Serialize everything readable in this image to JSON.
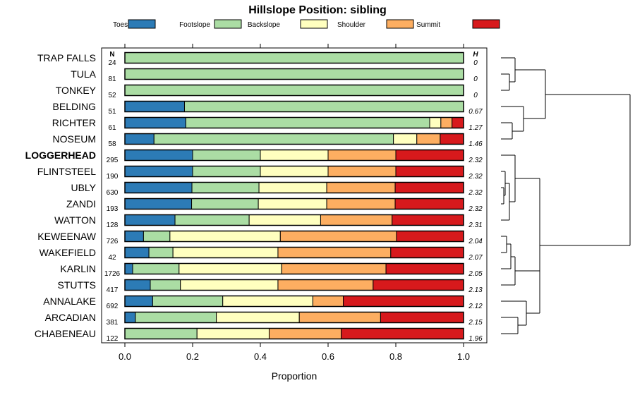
{
  "chart_data": {
    "type": "stacked-bar-horizontal",
    "title": "Hillslope Position: sibling",
    "xlabel": "Proportion",
    "xlim": [
      0,
      1
    ],
    "xticks": [
      "0.0",
      "0.2",
      "0.4",
      "0.6",
      "0.8",
      "1.0"
    ],
    "n_header": "N",
    "h_header": "H",
    "categories_legend": [
      {
        "name": "Toeslope",
        "color": "#2c7bb6"
      },
      {
        "name": "Footslope",
        "color": "#abdda4"
      },
      {
        "name": "Backslope",
        "color": "#ffffbf"
      },
      {
        "name": "Shoulder",
        "color": "#fdae61"
      },
      {
        "name": "Summit",
        "color": "#d7191c"
      }
    ],
    "rows": [
      {
        "label": "TRAP FALLS",
        "n": "24",
        "h": "0",
        "bold": false,
        "values": [
          0,
          1,
          0,
          0,
          0
        ]
      },
      {
        "label": "TULA",
        "n": "81",
        "h": "0",
        "bold": false,
        "values": [
          0,
          1,
          0,
          0,
          0
        ]
      },
      {
        "label": "TONKEY",
        "n": "52",
        "h": "0",
        "bold": false,
        "values": [
          0,
          1,
          0,
          0,
          0
        ]
      },
      {
        "label": "BELDING",
        "n": "51",
        "h": "0.67",
        "bold": false,
        "values": [
          0.176,
          0.824,
          0,
          0,
          0
        ]
      },
      {
        "label": "RICHTER",
        "n": "61",
        "h": "1.27",
        "bold": false,
        "values": [
          0.18,
          0.72,
          0.033,
          0.033,
          0.034
        ]
      },
      {
        "label": "NOSEUM",
        "n": "58",
        "h": "1.46",
        "bold": false,
        "values": [
          0.086,
          0.707,
          0.069,
          0.069,
          0.069
        ]
      },
      {
        "label": "LOGGERHEAD",
        "n": "295",
        "h": "2.32",
        "bold": true,
        "values": [
          0.2,
          0.2,
          0.2,
          0.2,
          0.2
        ]
      },
      {
        "label": "FLINTSTEEL",
        "n": "190",
        "h": "2.32",
        "bold": false,
        "values": [
          0.2,
          0.2,
          0.2,
          0.2,
          0.2
        ]
      },
      {
        "label": "UBLY",
        "n": "630",
        "h": "2.32",
        "bold": false,
        "values": [
          0.198,
          0.198,
          0.2,
          0.202,
          0.202
        ]
      },
      {
        "label": "ZANDI",
        "n": "193",
        "h": "2.32",
        "bold": false,
        "values": [
          0.197,
          0.197,
          0.202,
          0.202,
          0.202
        ]
      },
      {
        "label": "WATTON",
        "n": "128",
        "h": "2.31",
        "bold": false,
        "values": [
          0.148,
          0.219,
          0.211,
          0.211,
          0.211
        ]
      },
      {
        "label": "KEWEENAW",
        "n": "726",
        "h": "2.04",
        "bold": false,
        "values": [
          0.055,
          0.078,
          0.326,
          0.343,
          0.198
        ]
      },
      {
        "label": "WAKEFIELD",
        "n": "42",
        "h": "2.07",
        "bold": false,
        "values": [
          0.071,
          0.071,
          0.31,
          0.333,
          0.215
        ]
      },
      {
        "label": "KARLIN",
        "n": "1726",
        "h": "2.05",
        "bold": false,
        "values": [
          0.023,
          0.137,
          0.303,
          0.308,
          0.229
        ]
      },
      {
        "label": "STUTTS",
        "n": "417",
        "h": "2.13",
        "bold": false,
        "values": [
          0.075,
          0.089,
          0.288,
          0.281,
          0.267
        ]
      },
      {
        "label": "ANNALAKE",
        "n": "692",
        "h": "2.12",
        "bold": false,
        "values": [
          0.082,
          0.207,
          0.266,
          0.09,
          0.355
        ]
      },
      {
        "label": "ARCADIAN",
        "n": "381",
        "h": "2.15",
        "bold": false,
        "values": [
          0.031,
          0.239,
          0.245,
          0.24,
          0.245
        ]
      },
      {
        "label": "CHABENEAU",
        "n": "122",
        "h": "1.96",
        "bold": false,
        "values": [
          0,
          0.213,
          0.213,
          0.213,
          0.361
        ]
      }
    ]
  }
}
